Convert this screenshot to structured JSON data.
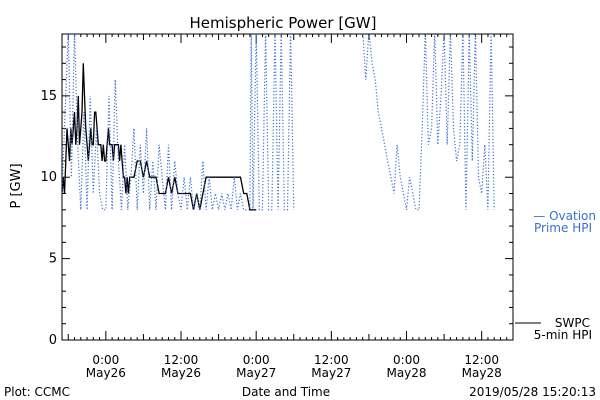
{
  "chart_data": {
    "type": "line",
    "title": "Hemispheric Power [GW]",
    "xlabel": "Date and Time",
    "ylabel": "P [GW]",
    "ylim": [
      0,
      18.8
    ],
    "xlim_hours_label": [
      "2019-05-25 17:00",
      "2019-05-28 17:00"
    ],
    "yticks": [
      0,
      5,
      10,
      15
    ],
    "xticks": [
      {
        "t": 7,
        "time": "0:00",
        "date": "May26"
      },
      {
        "t": 19,
        "time": "12:00",
        "date": "May26"
      },
      {
        "t": 31,
        "time": "0:00",
        "date": "May27"
      },
      {
        "t": 43,
        "time": "12:00",
        "date": "May27"
      },
      {
        "t": 55,
        "time": "0:00",
        "date": "May28"
      },
      {
        "t": 67,
        "time": "12:00",
        "date": "May28"
      }
    ],
    "series": [
      {
        "name": "SWPC 5-min HPI",
        "style": "solid",
        "color": "#000000",
        "points": [
          [
            0.0,
            9
          ],
          [
            0.2,
            10
          ],
          [
            0.4,
            9
          ],
          [
            0.6,
            11
          ],
          [
            0.8,
            13
          ],
          [
            1.0,
            12
          ],
          [
            1.2,
            11
          ],
          [
            1.4,
            13
          ],
          [
            1.6,
            12
          ],
          [
            1.8,
            13
          ],
          [
            2.0,
            14
          ],
          [
            2.2,
            12
          ],
          [
            2.4,
            13
          ],
          [
            2.6,
            15
          ],
          [
            2.8,
            12
          ],
          [
            3.0,
            13
          ],
          [
            3.2,
            14
          ],
          [
            3.4,
            17
          ],
          [
            3.6,
            15
          ],
          [
            3.8,
            13
          ],
          [
            4.0,
            12
          ],
          [
            4.2,
            11
          ],
          [
            4.4,
            12
          ],
          [
            4.6,
            13
          ],
          [
            4.8,
            12
          ],
          [
            5.0,
            12
          ],
          [
            5.2,
            14
          ],
          [
            5.4,
            14
          ],
          [
            5.6,
            13
          ],
          [
            5.8,
            12
          ],
          [
            6.0,
            12
          ],
          [
            6.2,
            12
          ],
          [
            6.4,
            11
          ],
          [
            6.6,
            12
          ],
          [
            6.8,
            11
          ],
          [
            7.0,
            11
          ],
          [
            7.2,
            12
          ],
          [
            7.4,
            13
          ],
          [
            7.6,
            12
          ],
          [
            7.8,
            12
          ],
          [
            8.0,
            12
          ],
          [
            8.2,
            11
          ],
          [
            8.4,
            12
          ],
          [
            8.6,
            12
          ],
          [
            8.8,
            12
          ],
          [
            9.0,
            12
          ],
          [
            9.2,
            11
          ],
          [
            9.4,
            12
          ],
          [
            9.6,
            11
          ],
          [
            9.8,
            10
          ],
          [
            10.0,
            10
          ],
          [
            10.2,
            9
          ],
          [
            10.4,
            10
          ],
          [
            10.6,
            9
          ],
          [
            10.8,
            10
          ],
          [
            11.0,
            10
          ],
          [
            11.5,
            10
          ],
          [
            12.0,
            11
          ],
          [
            12.5,
            11
          ],
          [
            13.0,
            10
          ],
          [
            13.5,
            11
          ],
          [
            14.0,
            10
          ],
          [
            14.5,
            10
          ],
          [
            15.0,
            10
          ],
          [
            15.5,
            9
          ],
          [
            16.0,
            9
          ],
          [
            16.5,
            9
          ],
          [
            17.0,
            10
          ],
          [
            17.5,
            9
          ],
          [
            18.0,
            10
          ],
          [
            18.5,
            9
          ],
          [
            19.0,
            9
          ],
          [
            19.5,
            9
          ],
          [
            20.0,
            9
          ],
          [
            20.5,
            9
          ],
          [
            21.0,
            8
          ],
          [
            21.5,
            9
          ],
          [
            22.0,
            8
          ],
          [
            22.5,
            9
          ],
          [
            23.0,
            10
          ],
          [
            23.5,
            10
          ],
          [
            24.0,
            10
          ],
          [
            24.5,
            10
          ],
          [
            25.0,
            10
          ],
          [
            25.5,
            10
          ],
          [
            26.0,
            10
          ],
          [
            26.5,
            10
          ],
          [
            27.0,
            10
          ],
          [
            27.5,
            10
          ],
          [
            28.0,
            10
          ],
          [
            28.5,
            10
          ],
          [
            29.0,
            9
          ],
          [
            29.5,
            9
          ],
          [
            30.0,
            8
          ],
          [
            30.5,
            8
          ],
          [
            31.0,
            8
          ]
        ]
      },
      {
        "name": "Ovation Prime HPI",
        "style": "dotted",
        "color": "#3a6fd0",
        "segments": [
          [
            [
              0.0,
              9
            ],
            [
              0.5,
              14
            ],
            [
              1.0,
              19
            ],
            [
              1.5,
              10
            ],
            [
              2.0,
              19
            ],
            [
              2.5,
              12
            ],
            [
              3.0,
              8
            ],
            [
              3.5,
              14
            ],
            [
              4.0,
              8
            ],
            [
              4.5,
              15
            ],
            [
              5.0,
              9
            ],
            [
              5.5,
              13
            ],
            [
              6.0,
              9
            ],
            [
              6.5,
              8
            ],
            [
              7.0,
              8
            ],
            [
              7.5,
              15
            ],
            [
              8.0,
              8
            ],
            [
              8.5,
              16
            ],
            [
              9.0,
              11
            ],
            [
              9.5,
              8
            ],
            [
              10.0,
              12
            ],
            [
              10.5,
              8
            ],
            [
              11.0,
              10
            ],
            [
              11.5,
              13
            ],
            [
              12.0,
              8
            ],
            [
              12.5,
              12
            ],
            [
              13.0,
              9
            ],
            [
              13.5,
              13
            ],
            [
              14.0,
              8
            ],
            [
              14.5,
              11
            ],
            [
              15.0,
              8
            ],
            [
              15.5,
              12
            ],
            [
              16.0,
              10
            ],
            [
              16.5,
              8
            ],
            [
              17.0,
              12
            ],
            [
              17.5,
              8
            ],
            [
              18.0,
              11
            ],
            [
              18.5,
              9
            ],
            [
              19.0,
              8
            ],
            [
              19.5,
              10
            ],
            [
              20.0,
              8
            ],
            [
              20.5,
              10
            ],
            [
              21.0,
              8
            ],
            [
              21.5,
              9
            ],
            [
              22.0,
              8
            ],
            [
              22.5,
              11
            ],
            [
              23.0,
              8
            ],
            [
              23.5,
              10
            ],
            [
              24.0,
              8
            ],
            [
              24.5,
              9
            ],
            [
              25.0,
              8
            ],
            [
              25.5,
              9
            ],
            [
              26.0,
              8
            ],
            [
              26.5,
              9
            ],
            [
              27.0,
              8
            ],
            [
              27.5,
              10
            ],
            [
              28.0,
              8
            ],
            [
              28.5,
              9
            ],
            [
              29.0,
              8
            ],
            [
              29.5,
              8
            ],
            [
              30.0,
              8
            ],
            [
              30.2,
              19
            ],
            [
              30.5,
              8
            ],
            [
              31.0,
              19
            ],
            [
              31.5,
              8
            ],
            [
              32.0,
              8
            ],
            [
              32.5,
              19
            ],
            [
              33.0,
              8
            ],
            [
              33.5,
              8
            ],
            [
              34.0,
              19
            ],
            [
              34.5,
              8
            ],
            [
              35.0,
              19
            ],
            [
              35.5,
              8
            ],
            [
              36.0,
              8
            ],
            [
              36.5,
              19
            ],
            [
              37.0,
              8
            ]
          ],
          [
            [
              48.0,
              19
            ],
            [
              48.5,
              16
            ],
            [
              49.0,
              19
            ],
            [
              49.5,
              17
            ],
            [
              50.0,
              16
            ],
            [
              50.5,
              14
            ],
            [
              51.0,
              13
            ],
            [
              51.5,
              12
            ],
            [
              52.0,
              11
            ],
            [
              52.5,
              10
            ],
            [
              53.0,
              9
            ],
            [
              53.5,
              12
            ],
            [
              54.0,
              10
            ],
            [
              54.5,
              9
            ],
            [
              55.0,
              8
            ],
            [
              55.5,
              10
            ],
            [
              56.0,
              9
            ],
            [
              56.5,
              8
            ],
            [
              57.0,
              8
            ],
            [
              57.5,
              13
            ],
            [
              58.0,
              19
            ],
            [
              58.5,
              12
            ],
            [
              59.0,
              13
            ],
            [
              59.5,
              19
            ],
            [
              60.0,
              12
            ],
            [
              60.5,
              15
            ],
            [
              61.0,
              19
            ],
            [
              61.5,
              12
            ],
            [
              62.0,
              19
            ],
            [
              62.5,
              13
            ],
            [
              63.0,
              11
            ],
            [
              63.5,
              12
            ],
            [
              64.0,
              19
            ],
            [
              64.5,
              8
            ],
            [
              65.0,
              19
            ],
            [
              65.5,
              11
            ],
            [
              66.0,
              19
            ],
            [
              66.5,
              10
            ],
            [
              67.0,
              9
            ],
            [
              67.5,
              12
            ],
            [
              68.0,
              8
            ],
            [
              68.5,
              19
            ],
            [
              69.0,
              8
            ]
          ]
        ]
      }
    ]
  },
  "legend": {
    "ovation_line1": "— Ovation",
    "ovation_line2": "Prime HPI",
    "swpc_line1": "SWPC",
    "swpc_line2": "5-min HPI"
  },
  "footer": {
    "left": "Plot: CCMC",
    "center": "Date and Time",
    "right": "2019/05/28 15:20:13"
  },
  "colors": {
    "ovation": "#3a6fd0",
    "swpc": "#000000"
  }
}
